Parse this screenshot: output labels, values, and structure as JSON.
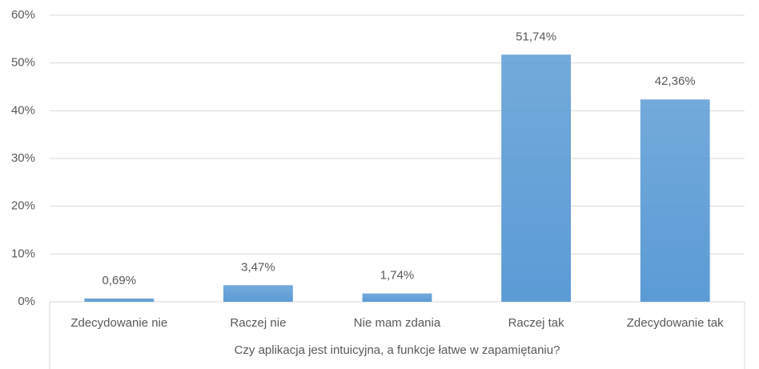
{
  "chart_data": {
    "type": "bar",
    "x_label": "Czy aplikacja jest intuicyjna, a funkcje łatwe w zapamiętaniu?",
    "categories": [
      "Zdecydowanie nie",
      "Raczej nie",
      "Nie mam zdania",
      "Raczej tak",
      "Zdecydowanie tak"
    ],
    "values": [
      0.69,
      3.47,
      1.74,
      51.74,
      42.36
    ],
    "value_labels": [
      "0,69%",
      "3,47%",
      "1,74%",
      "51,74%",
      "42,36%"
    ],
    "color": "#5b9bd5",
    "ylim": [
      0,
      60
    ],
    "yticks": [
      {
        "value": 0,
        "label": "0%"
      },
      {
        "value": 10,
        "label": "10%"
      },
      {
        "value": 20,
        "label": "20%"
      },
      {
        "value": 30,
        "label": "30%"
      },
      {
        "value": 40,
        "label": "40%"
      },
      {
        "value": 50,
        "label": "50%"
      },
      {
        "value": 60,
        "label": "60%"
      }
    ],
    "grid": true
  }
}
